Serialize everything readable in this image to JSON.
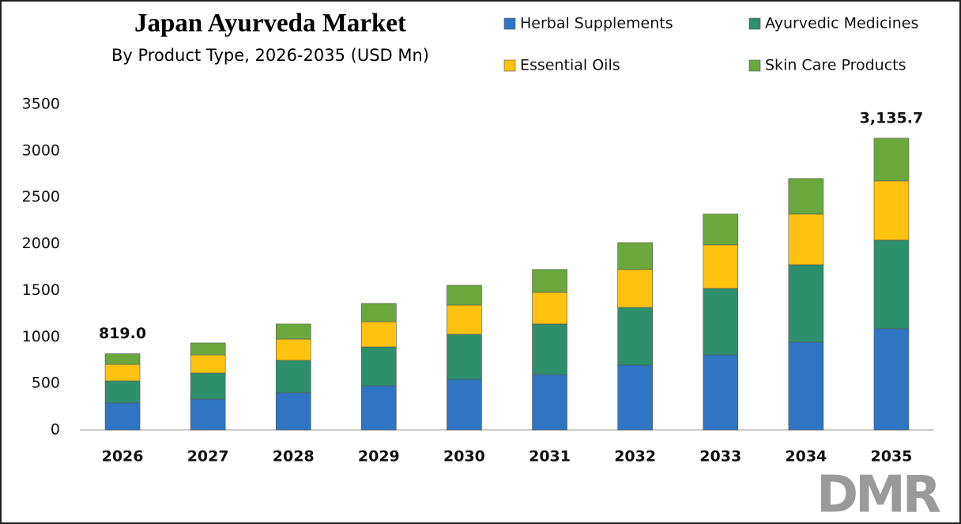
{
  "chart_data": {
    "type": "stacked_bar",
    "title": "Japan Ayurveda Market",
    "subtitle": "By Product Type, 2026-2035 (USD Mn)",
    "categories": [
      "2026",
      "2027",
      "2028",
      "2029",
      "2030",
      "2031",
      "2032",
      "2033",
      "2034",
      "2035"
    ],
    "series": [
      {
        "name": "Herbal Supplements",
        "color": "#2f75c4",
        "values": [
          290,
          331,
          400,
          476,
          544,
          595,
          697,
          807,
          943,
          1088
        ]
      },
      {
        "name": "Ayurvedic Medicines",
        "color": "#2e8f6c",
        "values": [
          237,
          281,
          348,
          416,
          484,
          544,
          620,
          714,
          833,
          952
        ]
      },
      {
        "name": "Essential Oils",
        "color": "#ffc20e",
        "values": [
          178,
          195,
          229,
          272,
          315,
          340,
          408,
          468,
          544,
          637
        ]
      },
      {
        "name": "Skin Care Products",
        "color": "#6aa83e",
        "values": [
          114,
          128,
          162,
          196,
          212,
          246,
          289,
          331,
          383,
          458.7
        ]
      }
    ],
    "totals": [
      819.0,
      null,
      null,
      null,
      null,
      null,
      null,
      null,
      null,
      3135.7
    ],
    "total_labels": [
      "819.0",
      null,
      null,
      null,
      null,
      null,
      null,
      null,
      null,
      "3,135.7"
    ],
    "ylim": [
      0,
      3500
    ],
    "yticks": [
      0,
      500,
      1000,
      1500,
      2000,
      2500,
      3000,
      3500
    ],
    "grid": false,
    "legend": "top-right",
    "logo": "DMR"
  }
}
